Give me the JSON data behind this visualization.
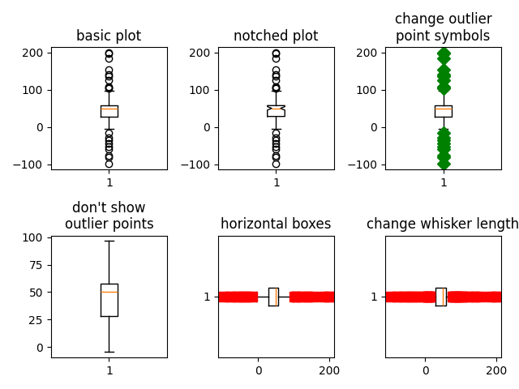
{
  "seed": 2,
  "titles": [
    "basic plot",
    "notched plot",
    "change outlier\npoint symbols",
    "don't show\noutlier points",
    "horizontal boxes",
    "change whisker length"
  ],
  "figsize": [
    6.4,
    4.8
  ],
  "dpi": 100,
  "outlier_color_green": "#008000",
  "outlier_color_red": "#ff0000",
  "flier_markersize": 8
}
